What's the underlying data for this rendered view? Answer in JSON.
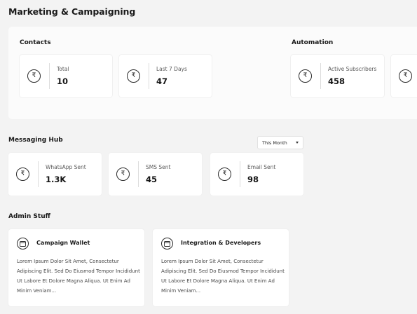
{
  "page": {
    "title": "Marketing & Campaigning"
  },
  "contacts": {
    "heading": "Contacts",
    "cards": [
      {
        "label": "Total",
        "value": "10",
        "icon": "rupee-icon"
      },
      {
        "label": "Last 7 Days",
        "value": "47",
        "icon": "rupee-icon"
      }
    ]
  },
  "automation": {
    "heading": "Automation",
    "cards": [
      {
        "label": "Active Subscribers",
        "value": "458",
        "icon": "rupee-icon"
      },
      {
        "label": "",
        "value": "",
        "icon": "rupee-icon"
      }
    ]
  },
  "messaging": {
    "heading": "Messaging Hub",
    "filter": {
      "selected": "This Month"
    },
    "cards": [
      {
        "label": "WhatsApp Sent",
        "value": "1.3K",
        "icon": "rupee-icon"
      },
      {
        "label": "SMS Sent",
        "value": "45",
        "icon": "rupee-icon"
      },
      {
        "label": "Email Sent",
        "value": "98",
        "icon": "rupee-icon"
      }
    ]
  },
  "admin": {
    "heading": "Admin Stuff",
    "cards": [
      {
        "title": "Campaign Wallet",
        "icon": "wallet-icon",
        "description": "Lorem Ipsum Dolor Sit Amet, Consectetur Adipiscing Elit. Sed Do Eiusmod Tempor Incididunt Ut Labore Et Dolore Magna Aliqua. Ut Enim Ad Minim Veniam..."
      },
      {
        "title": "Integration & Developers",
        "icon": "wallet-icon",
        "description": "Lorem Ipsum Dolor Sit Amet, Consectetur Adipiscing Elit. Sed Do Eiusmod Tempor Incididunt Ut Labore Et Dolore Magna Aliqua. Ut Enim Ad Minim Veniam..."
      }
    ]
  },
  "rupee_symbol": "₹"
}
